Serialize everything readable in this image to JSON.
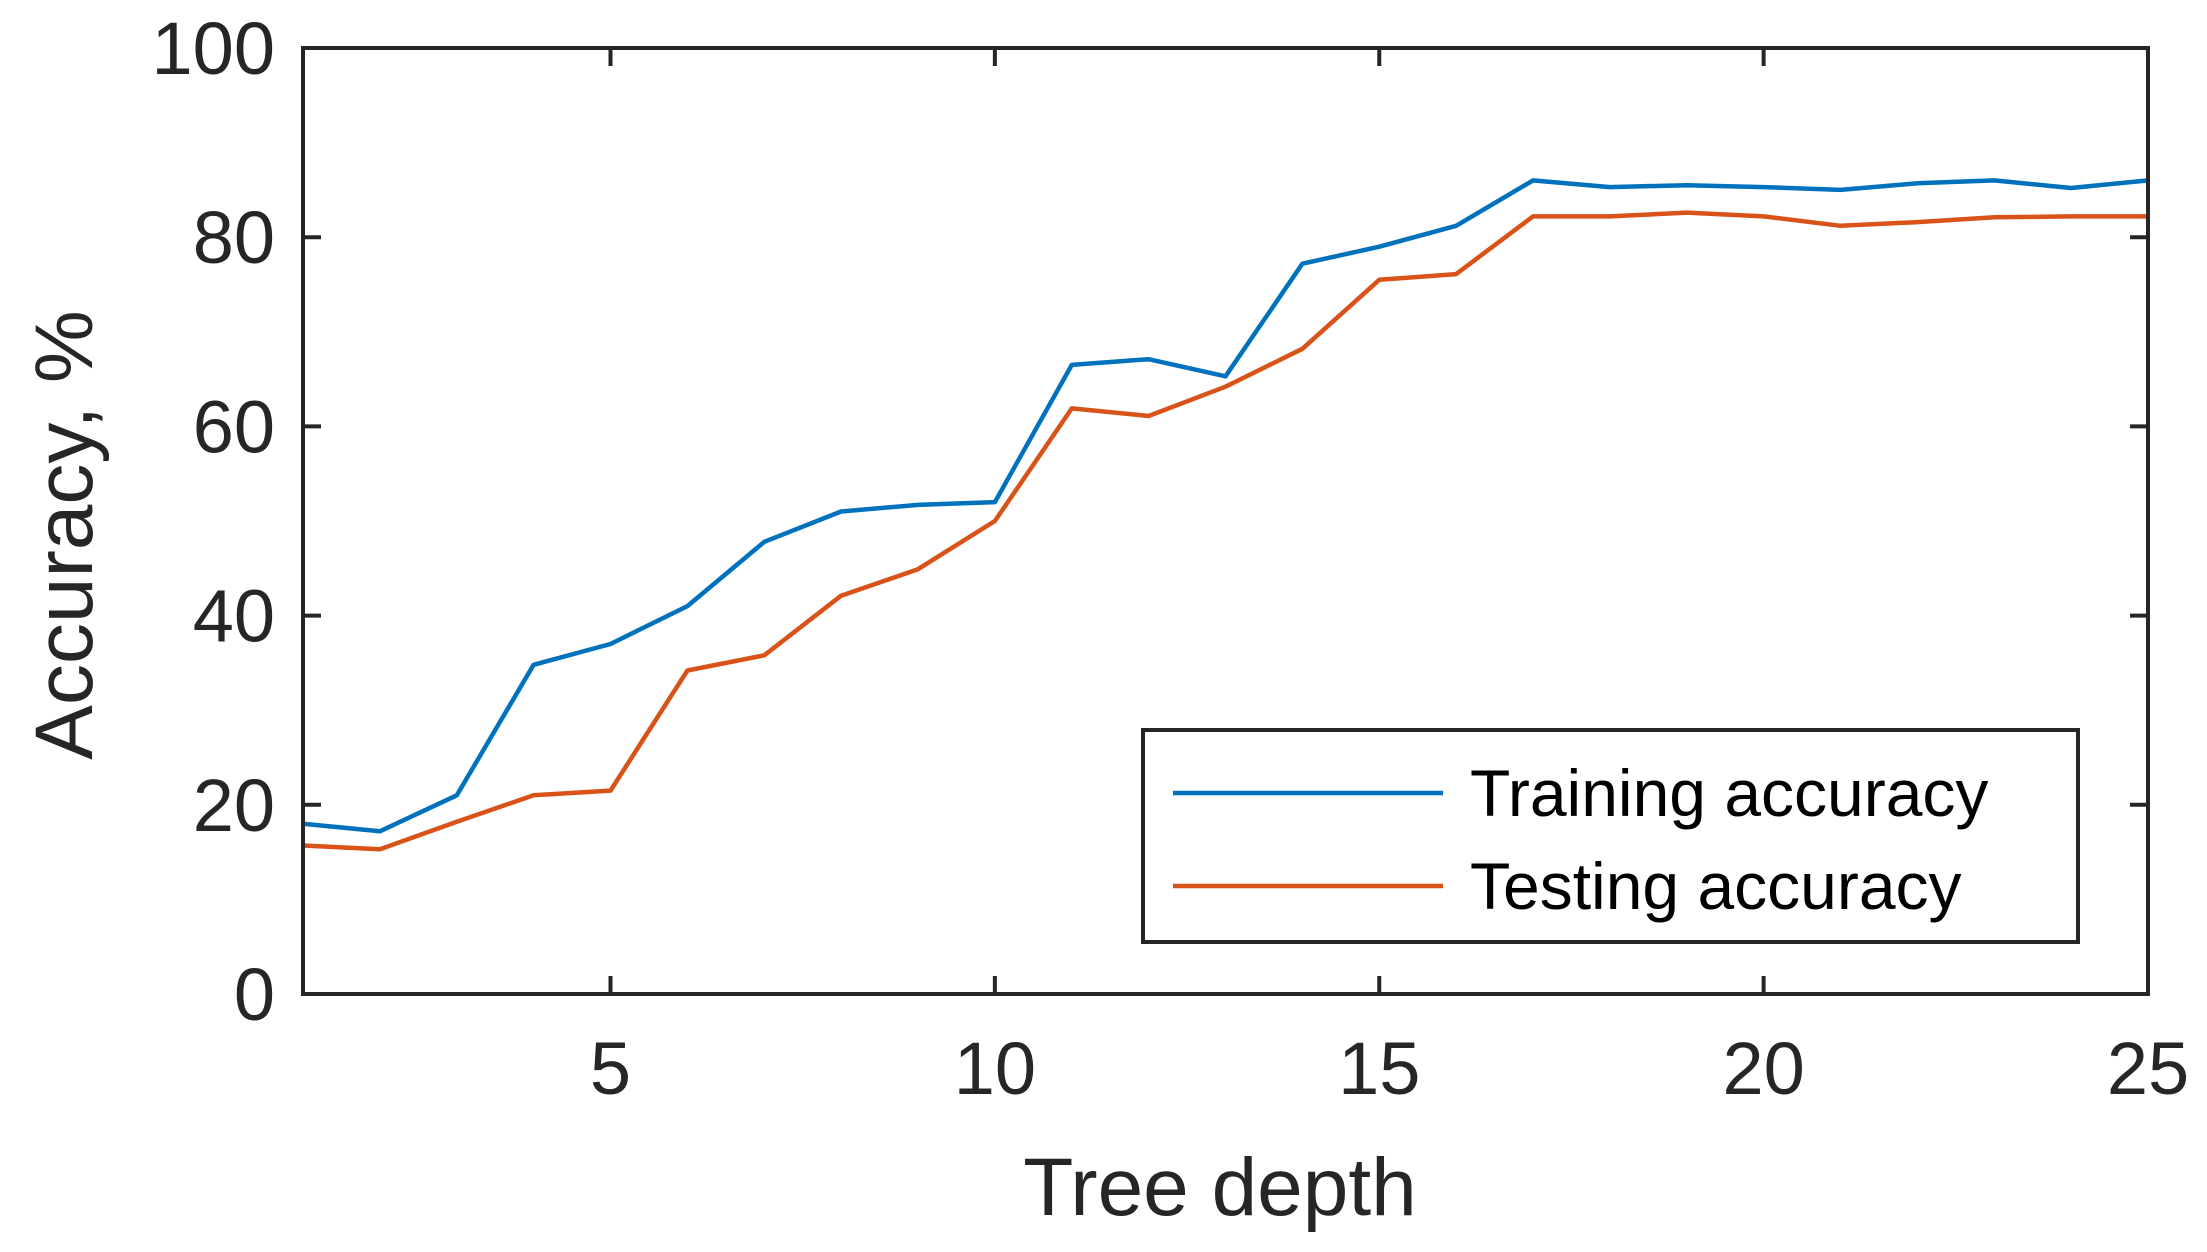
{
  "chart_data": {
    "type": "line",
    "xlabel": "Tree depth",
    "ylabel": "Accuracy, %",
    "xlim": [
      1,
      25
    ],
    "ylim": [
      0,
      100
    ],
    "xticks": [
      5,
      10,
      15,
      20,
      25
    ],
    "yticks": [
      0,
      20,
      40,
      60,
      80,
      100
    ],
    "x": [
      1,
      2,
      3,
      4,
      5,
      6,
      7,
      8,
      9,
      10,
      11,
      12,
      13,
      14,
      15,
      16,
      17,
      18,
      19,
      20,
      21,
      22,
      23,
      24,
      25
    ],
    "series": [
      {
        "name": "Training accuracy",
        "color": "#0072BD",
        "values": [
          18,
          17.2,
          21,
          34.8,
          37,
          41,
          47.8,
          51,
          51.7,
          52,
          66.5,
          67.1,
          65.3,
          77.2,
          79,
          81.2,
          86,
          85.3,
          85.5,
          85.3,
          85,
          85.7,
          86,
          85.2,
          86
        ]
      },
      {
        "name": "Testing accuracy",
        "color": "#D95319",
        "values": [
          15.7,
          15.3,
          18.2,
          21,
          21.5,
          34.2,
          35.8,
          42.1,
          44.9,
          50,
          61.9,
          61.1,
          64.2,
          68.2,
          75.5,
          76.1,
          82.2,
          82.2,
          82.6,
          82.2,
          81.2,
          81.6,
          82.1,
          82.2,
          82.2
        ]
      }
    ],
    "legend_position": "bottom-right",
    "grid": false
  }
}
